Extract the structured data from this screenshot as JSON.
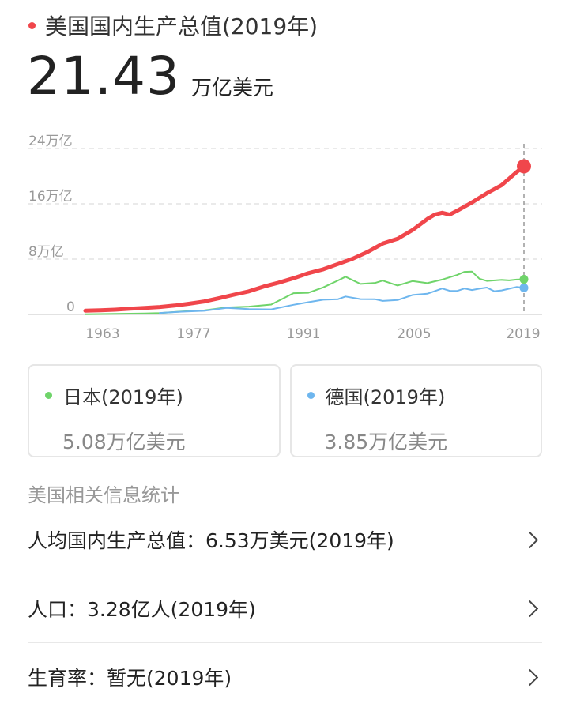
{
  "header": {
    "title": "美国国内生产总值(2019年)",
    "accent_color": "#f0464b"
  },
  "main": {
    "value": "21.43",
    "unit": "万亿美元"
  },
  "chart_data": {
    "type": "line",
    "x_tick_labels": [
      "1963",
      "1977",
      "1991",
      "2005",
      "2019"
    ],
    "y_tick_labels": [
      "24万亿",
      "16万亿",
      "8万亿",
      "0"
    ],
    "ylim": [
      0,
      24
    ],
    "xlim": [
      1960,
      2019
    ],
    "grid": true,
    "series": [
      {
        "color": "#f0464b",
        "x": [
          1960,
          1962,
          1964,
          1966,
          1968,
          1970,
          1972,
          1974,
          1976,
          1978,
          1980,
          1982,
          1984,
          1986,
          1988,
          1990,
          1992,
          1994,
          1996,
          1998,
          2000,
          2002,
          2004,
          2006,
          2007,
          2008,
          2009,
          2010,
          2012,
          2014,
          2016,
          2018,
          2019
        ],
        "y": [
          0.54,
          0.6,
          0.69,
          0.82,
          0.94,
          1.07,
          1.28,
          1.55,
          1.87,
          2.35,
          2.86,
          3.34,
          4.04,
          4.59,
          5.24,
          5.96,
          6.52,
          7.29,
          8.07,
          9.06,
          10.25,
          10.94,
          12.21,
          13.81,
          14.45,
          14.71,
          14.45,
          14.99,
          16.2,
          17.53,
          18.71,
          20.58,
          21.43
        ]
      },
      {
        "name": "日本",
        "color": "#6fd46a",
        "x": [
          1960,
          1964,
          1968,
          1970,
          1973,
          1976,
          1979,
          1982,
          1985,
          1988,
          1990,
          1992,
          1994,
          1995,
          1997,
          1999,
          2000,
          2002,
          2004,
          2006,
          2008,
          2010,
          2011,
          2012,
          2013,
          2014,
          2016,
          2017,
          2018,
          2019
        ],
        "y": [
          0.04,
          0.08,
          0.15,
          0.21,
          0.43,
          0.58,
          1.02,
          1.13,
          1.43,
          3.07,
          3.13,
          3.91,
          4.91,
          5.45,
          4.41,
          4.56,
          4.89,
          4.18,
          4.82,
          4.53,
          5.04,
          5.7,
          6.16,
          6.2,
          5.16,
          4.85,
          5.0,
          4.93,
          5.04,
          5.08
        ]
      },
      {
        "name": "德国",
        "color": "#6eb6ee",
        "x": [
          1970,
          1973,
          1976,
          1979,
          1982,
          1985,
          1988,
          1990,
          1992,
          1994,
          1995,
          1997,
          1999,
          2000,
          2002,
          2004,
          2006,
          2008,
          2009,
          2010,
          2011,
          2012,
          2013,
          2014,
          2015,
          2016,
          2018,
          2019
        ],
        "y": [
          0.22,
          0.4,
          0.52,
          0.94,
          0.77,
          0.73,
          1.4,
          1.77,
          2.13,
          2.21,
          2.59,
          2.22,
          2.19,
          1.95,
          2.08,
          2.81,
          3.0,
          3.75,
          3.42,
          3.4,
          3.75,
          3.53,
          3.73,
          3.89,
          3.36,
          3.47,
          3.97,
          3.85
        ]
      }
    ]
  },
  "comparison_cards": [
    {
      "label": "日本(2019年)",
      "value": "5.08万亿美元",
      "dot_color": "#6fd46a"
    },
    {
      "label": "德国(2019年)",
      "value": "3.85万亿美元",
      "dot_color": "#6eb6ee"
    }
  ],
  "related_section": {
    "title": "美国相关信息统计",
    "items": [
      {
        "text": "人均国内生产总值：6.53万美元(2019年)"
      },
      {
        "text": "人口：3.28亿人(2019年)"
      },
      {
        "text": "生育率：暂无(2019年)"
      }
    ]
  }
}
